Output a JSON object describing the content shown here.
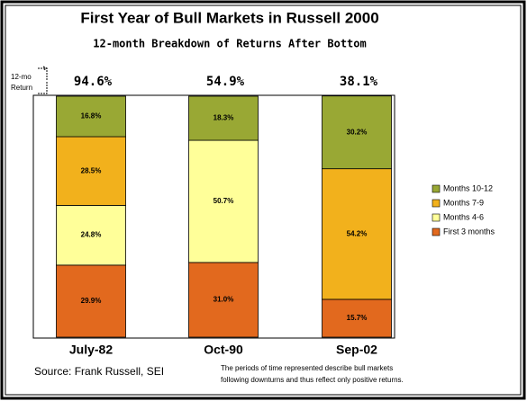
{
  "chart_data": {
    "type": "stacked_bar_100",
    "title": "First Year of Bull Markets in Russell 2000",
    "subtitle": "12-month Breakdown of Returns After Bottom",
    "annotation": [
      "12-mo",
      "Return"
    ],
    "categories": [
      "July-82",
      "Oct-90",
      "Sep-02"
    ],
    "totals": [
      94.6,
      54.9,
      38.1
    ],
    "total_labels": [
      "94.6%",
      "54.9%",
      "38.1%"
    ],
    "ylim": [
      0,
      100
    ],
    "series": [
      {
        "name": "First 3 months",
        "color": "#e2691e",
        "values": [
          29.9,
          31.0,
          15.7
        ],
        "value_labels": [
          "29.9%",
          "31.0%",
          "15.7%"
        ]
      },
      {
        "name": "Months 4-6",
        "color": "#ffff99",
        "values": [
          24.8,
          50.7,
          null
        ],
        "value_labels": [
          "24.8%",
          "50.7%",
          null
        ]
      },
      {
        "name": "Months 7-9",
        "color": "#f2b11c",
        "values": [
          28.5,
          null,
          54.2
        ],
        "value_labels": [
          "28.5%",
          null,
          "54.2%"
        ]
      },
      {
        "name": "Months 10-12",
        "color": "#99a834",
        "values": [
          16.8,
          18.3,
          30.2
        ],
        "value_labels": [
          "16.8%",
          "18.3%",
          "30.2%"
        ]
      }
    ],
    "source": "Source: Frank Russell, SEI",
    "footnote": [
      "The periods of time represented describe bull markets",
      "following downturns and thus reflect only positive returns."
    ]
  }
}
